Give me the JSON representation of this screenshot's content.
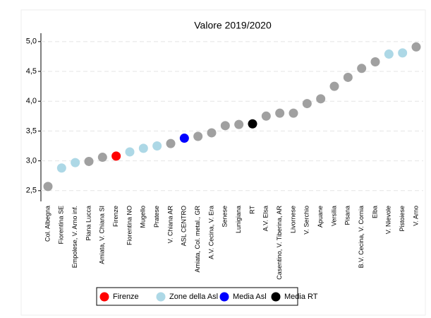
{
  "chart_data": {
    "type": "dot",
    "title": "Valore 2019/2020",
    "categories": [
      "Col. Albegna",
      "Fiorentina SE",
      "Empolese, V. Arno inf.",
      "Piana Lucca",
      "Amiata, V. Chiana SI",
      "Firenze",
      "Fiorentina NO",
      "Mugello",
      "Pratese",
      "V. Chiana AR",
      "ASL CENTRO",
      "Amiata, Col. metal., GR",
      "A.V. Cecina, V. Era",
      "Senese",
      "Lunigiana",
      "RT",
      "A.V. Elsa",
      "Casentino, V. Tiberina, AR",
      "Livornese",
      "V. Serchio",
      "Apuane",
      "Versilia",
      "Pisana",
      "B.V. Cecina, V. Cornia",
      "Elba",
      "V. Nievole",
      "Pistoiese",
      "V. Arno"
    ],
    "values": [
      2.57,
      2.88,
      2.97,
      2.99,
      3.06,
      3.08,
      3.15,
      3.21,
      3.25,
      3.29,
      3.38,
      3.41,
      3.47,
      3.59,
      3.61,
      3.62,
      3.75,
      3.8,
      3.8,
      3.96,
      4.04,
      4.25,
      4.4,
      4.55,
      4.66,
      4.79,
      4.81,
      4.91
    ],
    "colors": [
      "#a0a0a0",
      "#add8e6",
      "#add8e6",
      "#a0a0a0",
      "#a0a0a0",
      "#ff0000",
      "#add8e6",
      "#add8e6",
      "#add8e6",
      "#a0a0a0",
      "#0000ff",
      "#a0a0a0",
      "#a0a0a0",
      "#a0a0a0",
      "#a0a0a0",
      "#000000",
      "#a0a0a0",
      "#a0a0a0",
      "#a0a0a0",
      "#a0a0a0",
      "#a0a0a0",
      "#a0a0a0",
      "#a0a0a0",
      "#a0a0a0",
      "#a0a0a0",
      "#add8e6",
      "#add8e6",
      "#a0a0a0"
    ],
    "legend": [
      {
        "name": "Firenze",
        "color": "#ff0000"
      },
      {
        "name": "Zone della Asl",
        "color": "#add8e6"
      },
      {
        "name": "Media Asl",
        "color": "#0000ff"
      },
      {
        "name": "Media RT",
        "color": "#000000"
      }
    ],
    "ylim": [
      2.32,
      5.14
    ],
    "yticks": [
      {
        "value": 2.5,
        "label": "2,5"
      },
      {
        "value": 3.0,
        "label": "3,0"
      },
      {
        "value": 3.5,
        "label": "3,5"
      },
      {
        "value": 4.0,
        "label": "4,0"
      },
      {
        "value": 4.5,
        "label": "4,5"
      },
      {
        "value": 5.0,
        "label": "5,0"
      }
    ],
    "grid": true
  }
}
